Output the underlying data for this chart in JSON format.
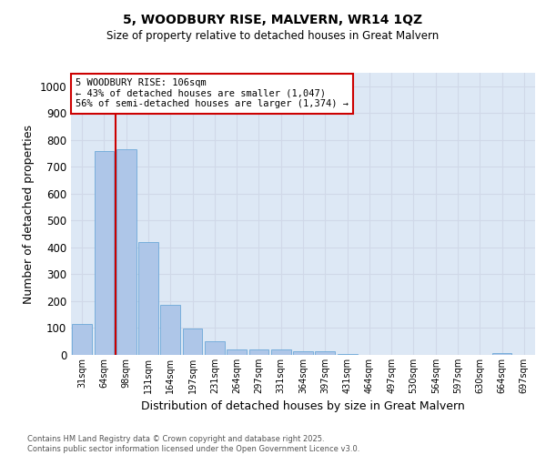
{
  "title_line1": "5, WOODBURY RISE, MALVERN, WR14 1QZ",
  "title_line2": "Size of property relative to detached houses in Great Malvern",
  "xlabel": "Distribution of detached houses by size in Great Malvern",
  "ylabel": "Number of detached properties",
  "categories": [
    "31sqm",
    "64sqm",
    "98sqm",
    "131sqm",
    "164sqm",
    "197sqm",
    "231sqm",
    "264sqm",
    "297sqm",
    "331sqm",
    "364sqm",
    "397sqm",
    "431sqm",
    "464sqm",
    "497sqm",
    "530sqm",
    "564sqm",
    "597sqm",
    "630sqm",
    "664sqm",
    "697sqm"
  ],
  "values": [
    115,
    760,
    765,
    420,
    185,
    97,
    50,
    22,
    22,
    20,
    15,
    12,
    3,
    1,
    1,
    1,
    0,
    0,
    0,
    8,
    0
  ],
  "bar_color": "#aec6e8",
  "bar_edge_color": "#5a9fd4",
  "grid_color": "#d0d8e8",
  "background_color": "#dde8f5",
  "property_line_color": "#cc0000",
  "annotation_box_edge_color": "#cc0000",
  "annotation_box_fill": "#ffffff",
  "ylim": [
    0,
    1050
  ],
  "yticks": [
    0,
    100,
    200,
    300,
    400,
    500,
    600,
    700,
    800,
    900,
    1000
  ],
  "footer_line1": "Contains HM Land Registry data © Crown copyright and database right 2025.",
  "footer_line2": "Contains public sector information licensed under the Open Government Licence v3.0."
}
